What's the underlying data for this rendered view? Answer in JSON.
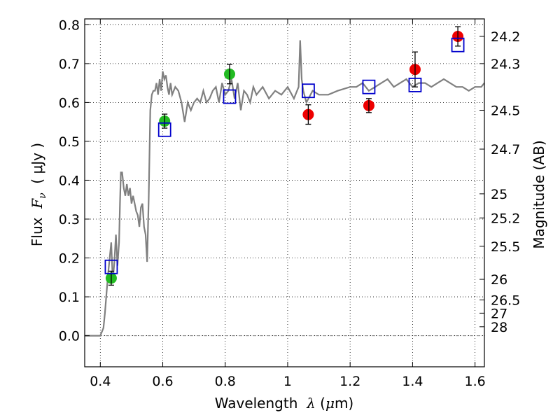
{
  "chart_data": {
    "type": "scatter",
    "xlabel": {
      "prefix": "Wavelength  ",
      "symbol": "λ",
      "units_open": " (",
      "mu": "μ",
      "units_rest": "m)"
    },
    "ylabel": {
      "prefix": "Flux  ",
      "symbol": "F",
      "sub": "ν",
      "units": "  ( μJy )"
    },
    "y2label": "Magnitude (AB)",
    "xlim": [
      0.35,
      1.63
    ],
    "ylim": [
      -0.08,
      0.815
    ],
    "xticks": [
      {
        "v": 0.4,
        "t": "0.4"
      },
      {
        "v": 0.6,
        "t": "0.6"
      },
      {
        "v": 0.8,
        "t": "0.8"
      },
      {
        "v": 1.0,
        "t": "1"
      },
      {
        "v": 1.2,
        "t": "1.2"
      },
      {
        "v": 1.4,
        "t": "1.4"
      },
      {
        "v": 1.6,
        "t": "1.6"
      }
    ],
    "yticks": [
      {
        "v": 0.0,
        "t": "0.0"
      },
      {
        "v": 0.1,
        "t": "0.1"
      },
      {
        "v": 0.2,
        "t": "0.2"
      },
      {
        "v": 0.3,
        "t": "0.3"
      },
      {
        "v": 0.4,
        "t": "0.4"
      },
      {
        "v": 0.5,
        "t": "0.5"
      },
      {
        "v": 0.6,
        "t": "0.6"
      },
      {
        "v": 0.7,
        "t": "0.7"
      },
      {
        "v": 0.8,
        "t": "0.8"
      }
    ],
    "y2ticks": [
      {
        "v": 0.77,
        "t": "24.2"
      },
      {
        "v": 0.7,
        "t": "24.3"
      },
      {
        "v": 0.58,
        "t": "24.5"
      },
      {
        "v": 0.48,
        "t": "24.7"
      },
      {
        "v": 0.365,
        "t": "25"
      },
      {
        "v": 0.303,
        "t": "25.2"
      },
      {
        "v": 0.23,
        "t": "25.5"
      },
      {
        "v": 0.145,
        "t": "26"
      },
      {
        "v": 0.092,
        "t": "26.5"
      },
      {
        "v": 0.058,
        "t": "27"
      },
      {
        "v": 0.023,
        "t": "28"
      }
    ],
    "grid": true,
    "zero_line": {
      "y": 0.0,
      "color": "#808080"
    },
    "model_spectrum": {
      "color": "#808080",
      "x": [
        0.35,
        0.4,
        0.41,
        0.415,
        0.42,
        0.425,
        0.43,
        0.435,
        0.44,
        0.445,
        0.45,
        0.455,
        0.46,
        0.463,
        0.466,
        0.47,
        0.475,
        0.48,
        0.485,
        0.49,
        0.495,
        0.5,
        0.505,
        0.51,
        0.515,
        0.52,
        0.525,
        0.53,
        0.535,
        0.54,
        0.545,
        0.55,
        0.555,
        0.56,
        0.565,
        0.57,
        0.575,
        0.58,
        0.585,
        0.59,
        0.595,
        0.6,
        0.605,
        0.61,
        0.615,
        0.62,
        0.625,
        0.63,
        0.64,
        0.65,
        0.66,
        0.67,
        0.68,
        0.69,
        0.7,
        0.71,
        0.72,
        0.73,
        0.74,
        0.75,
        0.76,
        0.77,
        0.78,
        0.79,
        0.8,
        0.81,
        0.82,
        0.83,
        0.84,
        0.85,
        0.86,
        0.87,
        0.88,
        0.89,
        0.9,
        0.92,
        0.94,
        0.96,
        0.98,
        1.0,
        1.02,
        1.035,
        1.04,
        1.045,
        1.05,
        1.06,
        1.08,
        1.1,
        1.13,
        1.16,
        1.2,
        1.22,
        1.24,
        1.26,
        1.28,
        1.3,
        1.32,
        1.34,
        1.36,
        1.38,
        1.4,
        1.42,
        1.44,
        1.46,
        1.48,
        1.5,
        1.52,
        1.54,
        1.56,
        1.58,
        1.6,
        1.62,
        1.63
      ],
      "y": [
        0.0,
        0.0,
        0.02,
        0.06,
        0.11,
        0.16,
        0.2,
        0.24,
        0.14,
        0.19,
        0.26,
        0.18,
        0.24,
        0.34,
        0.42,
        0.42,
        0.38,
        0.36,
        0.39,
        0.36,
        0.38,
        0.34,
        0.36,
        0.34,
        0.32,
        0.31,
        0.28,
        0.33,
        0.34,
        0.28,
        0.26,
        0.19,
        0.35,
        0.58,
        0.62,
        0.63,
        0.63,
        0.65,
        0.62,
        0.66,
        0.63,
        0.68,
        0.66,
        0.67,
        0.64,
        0.62,
        0.65,
        0.62,
        0.64,
        0.63,
        0.6,
        0.55,
        0.6,
        0.58,
        0.6,
        0.61,
        0.6,
        0.63,
        0.6,
        0.61,
        0.63,
        0.64,
        0.6,
        0.65,
        0.62,
        0.63,
        0.66,
        0.61,
        0.65,
        0.58,
        0.63,
        0.62,
        0.6,
        0.64,
        0.62,
        0.64,
        0.61,
        0.63,
        0.62,
        0.64,
        0.61,
        0.64,
        0.76,
        0.66,
        0.63,
        0.6,
        0.63,
        0.62,
        0.62,
        0.63,
        0.64,
        0.64,
        0.65,
        0.63,
        0.64,
        0.65,
        0.66,
        0.64,
        0.65,
        0.66,
        0.64,
        0.65,
        0.65,
        0.64,
        0.65,
        0.66,
        0.65,
        0.64,
        0.64,
        0.63,
        0.64,
        0.64,
        0.65
      ]
    },
    "series": [
      {
        "marker": "circle",
        "color": "#22bb22",
        "points": [
          {
            "x": 0.435,
            "y": 0.148,
            "err": 0.018
          },
          {
            "x": 0.606,
            "y": 0.552,
            "err": 0.018
          },
          {
            "x": 0.814,
            "y": 0.673,
            "err": 0.025
          }
        ]
      },
      {
        "marker": "circle",
        "color": "#ee0000",
        "points": [
          {
            "x": 1.066,
            "y": 0.569,
            "err": 0.025
          },
          {
            "x": 1.26,
            "y": 0.592,
            "err": 0.018
          },
          {
            "x": 1.408,
            "y": 0.685,
            "err": 0.045
          },
          {
            "x": 1.545,
            "y": 0.77,
            "err": 0.025
          }
        ]
      },
      {
        "marker": "open-square",
        "color": "#0000cc",
        "points": [
          {
            "x": 0.435,
            "y": 0.177
          },
          {
            "x": 0.606,
            "y": 0.53
          },
          {
            "x": 0.814,
            "y": 0.615
          },
          {
            "x": 1.066,
            "y": 0.63
          },
          {
            "x": 1.26,
            "y": 0.64
          },
          {
            "x": 1.408,
            "y": 0.645
          },
          {
            "x": 1.545,
            "y": 0.748
          }
        ]
      }
    ]
  }
}
